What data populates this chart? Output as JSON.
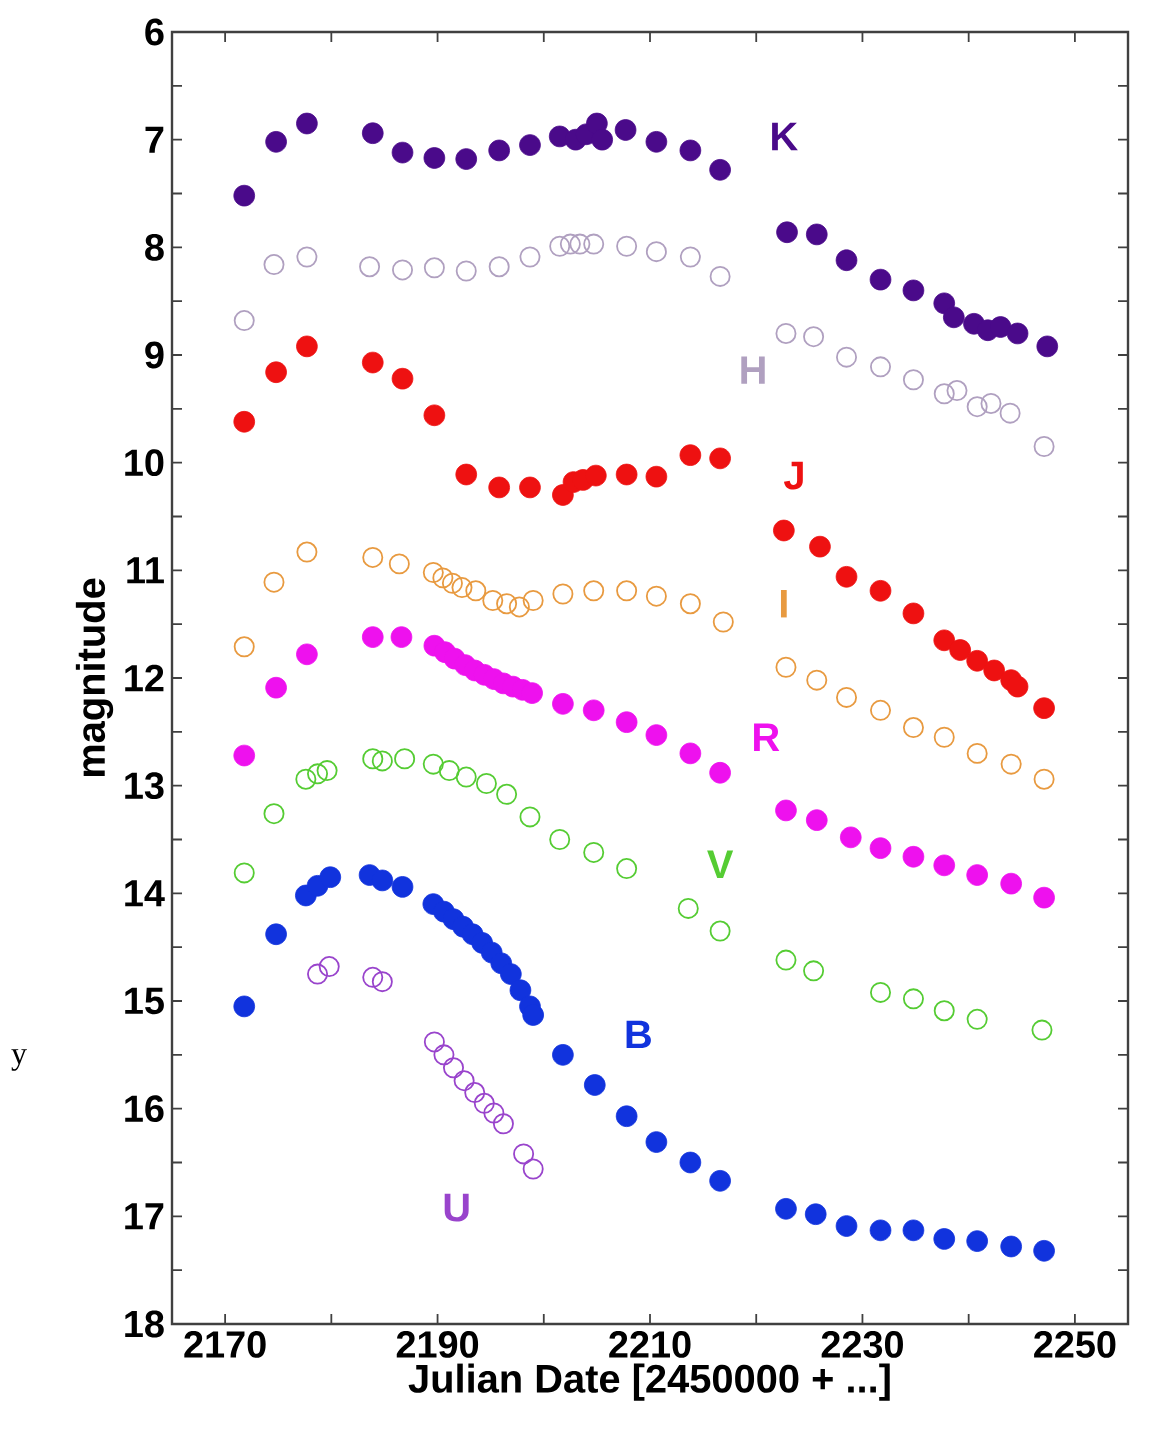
{
  "chart_data": {
    "type": "scatter",
    "xlabel": "Julian Date [2450000 + ...]",
    "ylabel": "magnitude",
    "xlim": [
      2165,
      2255
    ],
    "ylim": [
      18,
      6
    ],
    "xticks": [
      2170,
      {
        "value": 2180,
        "label": null
      },
      2190,
      {
        "value": 2200,
        "label": null
      },
      2210,
      {
        "value": 2220,
        "label": null
      },
      2230,
      {
        "value": 2240,
        "label": null
      },
      2250
    ],
    "yticks": [
      6,
      {
        "value": 6.5,
        "label": null
      },
      7,
      {
        "value": 7.5,
        "label": null
      },
      8,
      {
        "value": 8.5,
        "label": null
      },
      9,
      {
        "value": 9.5,
        "label": null
      },
      10,
      {
        "value": 10.5,
        "label": null
      },
      11,
      {
        "value": 11.5,
        "label": null
      },
      12,
      {
        "value": 12.5,
        "label": null
      },
      13,
      {
        "value": 13.5,
        "label": null
      },
      14,
      {
        "value": 14.5,
        "label": null
      },
      15,
      {
        "value": 15.5,
        "label": null
      },
      16,
      {
        "value": 16.5,
        "label": null
      },
      17,
      {
        "value": 17.5,
        "label": null
      },
      18
    ],
    "grid": false,
    "legend": false,
    "marker": "circle",
    "series": [
      {
        "name": "K",
        "color": "#4a0a8a",
        "x": [
          2171.8,
          2174.8,
          2177.7,
          2183.9,
          2186.7,
          2189.7,
          2192.7,
          2195.8,
          2198.7,
          2201.5,
          2203,
          2204,
          2205,
          2205.5,
          2207.7,
          2210.6,
          2213.8,
          2216.6,
          2222.9,
          2225.7,
          2228.5,
          2231.7,
          2234.8,
          2237.7,
          2238.6,
          2240.5,
          2241.8,
          2243,
          2244.6,
          2247.4
        ],
        "values": [
          7.52,
          7.02,
          6.85,
          6.94,
          7.12,
          7.17,
          7.18,
          7.1,
          7.05,
          6.97,
          7.0,
          6.95,
          6.85,
          7.0,
          6.91,
          7.02,
          7.1,
          7.28,
          7.86,
          7.88,
          8.12,
          8.3,
          8.4,
          8.52,
          8.65,
          8.71,
          8.77,
          8.74,
          8.8,
          8.92
        ]
      },
      {
        "name": "H",
        "color": "#b0a0c0",
        "x": [
          2171.8,
          2174.6,
          2177.7,
          2183.6,
          2186.7,
          2189.7,
          2192.7,
          2195.8,
          2198.7,
          2201.5,
          2202.5,
          2203.4,
          2204.7,
          2207.8,
          2210.6,
          2213.8,
          2216.6,
          2222.8,
          2225.4,
          2228.5,
          2231.7,
          2234.8,
          2237.7,
          2238.9,
          2240.8,
          2242.1,
          2243.9,
          2247.1
        ],
        "values": [
          8.68,
          8.16,
          8.09,
          8.18,
          8.21,
          8.19,
          8.22,
          8.18,
          8.09,
          7.99,
          7.97,
          7.97,
          7.97,
          7.99,
          8.04,
          8.09,
          8.27,
          8.8,
          8.83,
          9.02,
          9.11,
          9.23,
          9.36,
          9.33,
          9.48,
          9.45,
          9.54,
          9.85
        ]
      },
      {
        "name": "J",
        "color": "#ee1111",
        "x": [
          2171.8,
          2174.8,
          2177.7,
          2183.9,
          2186.7,
          2189.7,
          2192.7,
          2195.8,
          2198.7,
          2201.8,
          2202.8,
          2203.7,
          2204.9,
          2207.8,
          2210.6,
          2213.8,
          2216.6,
          2222.6,
          2226,
          2228.5,
          2231.7,
          2234.8,
          2237.7,
          2239.2,
          2240.8,
          2242.4,
          2244,
          2244.6,
          2247.1
        ],
        "values": [
          9.62,
          9.16,
          8.92,
          9.07,
          9.22,
          9.56,
          10.11,
          10.23,
          10.23,
          10.3,
          10.18,
          10.16,
          10.12,
          10.11,
          10.13,
          9.93,
          9.96,
          10.63,
          10.78,
          11.06,
          11.19,
          11.4,
          11.65,
          11.74,
          11.84,
          11.93,
          12.02,
          12.08,
          12.28
        ]
      },
      {
        "name": "I",
        "color": "#e89a40",
        "x": [
          2171.8,
          2174.6,
          2177.7,
          2183.9,
          2186.4,
          2189.6,
          2190.5,
          2191.4,
          2192.3,
          2193.6,
          2195.2,
          2196.5,
          2197.7,
          2199,
          2201.8,
          2204.7,
          2207.8,
          2210.6,
          2213.8,
          2216.9,
          2222.8,
          2225.7,
          2228.5,
          2231.7,
          2234.8,
          2237.7,
          2240.8,
          2244,
          2247.1
        ],
        "values": [
          11.71,
          11.11,
          10.83,
          10.88,
          10.94,
          11.02,
          11.07,
          11.12,
          11.16,
          11.19,
          11.28,
          11.31,
          11.34,
          11.28,
          11.22,
          11.19,
          11.19,
          11.24,
          11.31,
          11.48,
          11.9,
          12.02,
          12.18,
          12.3,
          12.46,
          12.55,
          12.7,
          12.8,
          12.94
        ]
      },
      {
        "name": "R",
        "color": "#ee11ee",
        "x": [
          2171.8,
          2174.8,
          2177.7,
          2183.9,
          2186.6,
          2189.7,
          2190.7,
          2191.6,
          2192.6,
          2193.5,
          2194.4,
          2195.3,
          2196.2,
          2197.1,
          2198.0,
          2198.9,
          2201.8,
          2204.7,
          2207.8,
          2210.6,
          2213.8,
          2216.6,
          2222.8,
          2225.7,
          2228.9,
          2231.7,
          2234.8,
          2237.7,
          2240.8,
          2244,
          2247.1
        ],
        "values": [
          12.72,
          12.09,
          11.78,
          11.62,
          11.62,
          11.7,
          11.76,
          11.82,
          11.88,
          11.93,
          11.97,
          12.01,
          12.05,
          12.08,
          12.11,
          12.14,
          12.24,
          12.3,
          12.41,
          12.53,
          12.7,
          12.88,
          13.23,
          13.32,
          13.48,
          13.58,
          13.66,
          13.74,
          13.83,
          13.91,
          14.04
        ]
      },
      {
        "name": "V",
        "color": "#55cc33",
        "x": [
          2171.8,
          2174.6,
          2177.6,
          2178.7,
          2179.6,
          2183.9,
          2184.8,
          2186.9,
          2189.6,
          2191.1,
          2192.7,
          2194.6,
          2196.5,
          2198.7,
          2201.5,
          2204.7,
          2207.8,
          2213.6,
          2216.6,
          2222.8,
          2225.4,
          2231.7,
          2234.8,
          2237.7,
          2240.8,
          2246.9
        ],
        "values": [
          13.81,
          13.26,
          12.94,
          12.89,
          12.86,
          12.75,
          12.77,
          12.75,
          12.8,
          12.86,
          12.92,
          12.98,
          13.08,
          13.29,
          13.5,
          13.62,
          13.77,
          14.14,
          14.35,
          14.62,
          14.72,
          14.92,
          14.98,
          15.09,
          15.17,
          15.27
        ]
      },
      {
        "name": "B",
        "color": "#1133dd",
        "x": [
          2171.8,
          2174.8,
          2177.6,
          2178.7,
          2179.9,
          2183.6,
          2184.8,
          2186.7,
          2189.6,
          2190.6,
          2191.5,
          2192.4,
          2193.3,
          2194.2,
          2195.1,
          2196.0,
          2196.9,
          2197.8,
          2198.7,
          2199.0,
          2201.8,
          2204.8,
          2207.8,
          2210.6,
          2213.8,
          2216.6,
          2222.8,
          2225.6,
          2228.5,
          2231.7,
          2234.8,
          2237.7,
          2240.8,
          2244,
          2247.1
        ],
        "values": [
          15.05,
          14.38,
          14.02,
          13.93,
          13.85,
          13.83,
          13.88,
          13.94,
          14.1,
          14.17,
          14.24,
          14.31,
          14.38,
          14.46,
          14.55,
          14.65,
          14.75,
          14.9,
          15.05,
          15.13,
          15.5,
          15.78,
          16.07,
          16.31,
          16.5,
          16.67,
          16.93,
          16.98,
          17.09,
          17.13,
          17.13,
          17.21,
          17.23,
          17.28,
          17.32
        ]
      },
      {
        "name": "U",
        "color": "#9944cc",
        "x": [
          2178.7,
          2179.8,
          2183.9,
          2184.8,
          2189.7,
          2190.6,
          2191.5,
          2192.5,
          2193.5,
          2194.4,
          2195.3,
          2196.2,
          2198.1,
          2199.0
        ],
        "values": [
          14.75,
          14.68,
          14.78,
          14.82,
          15.38,
          15.5,
          15.62,
          15.74,
          15.85,
          15.95,
          16.04,
          16.14,
          16.42,
          16.56
        ]
      }
    ],
    "annotations": [
      "y"
    ]
  }
}
